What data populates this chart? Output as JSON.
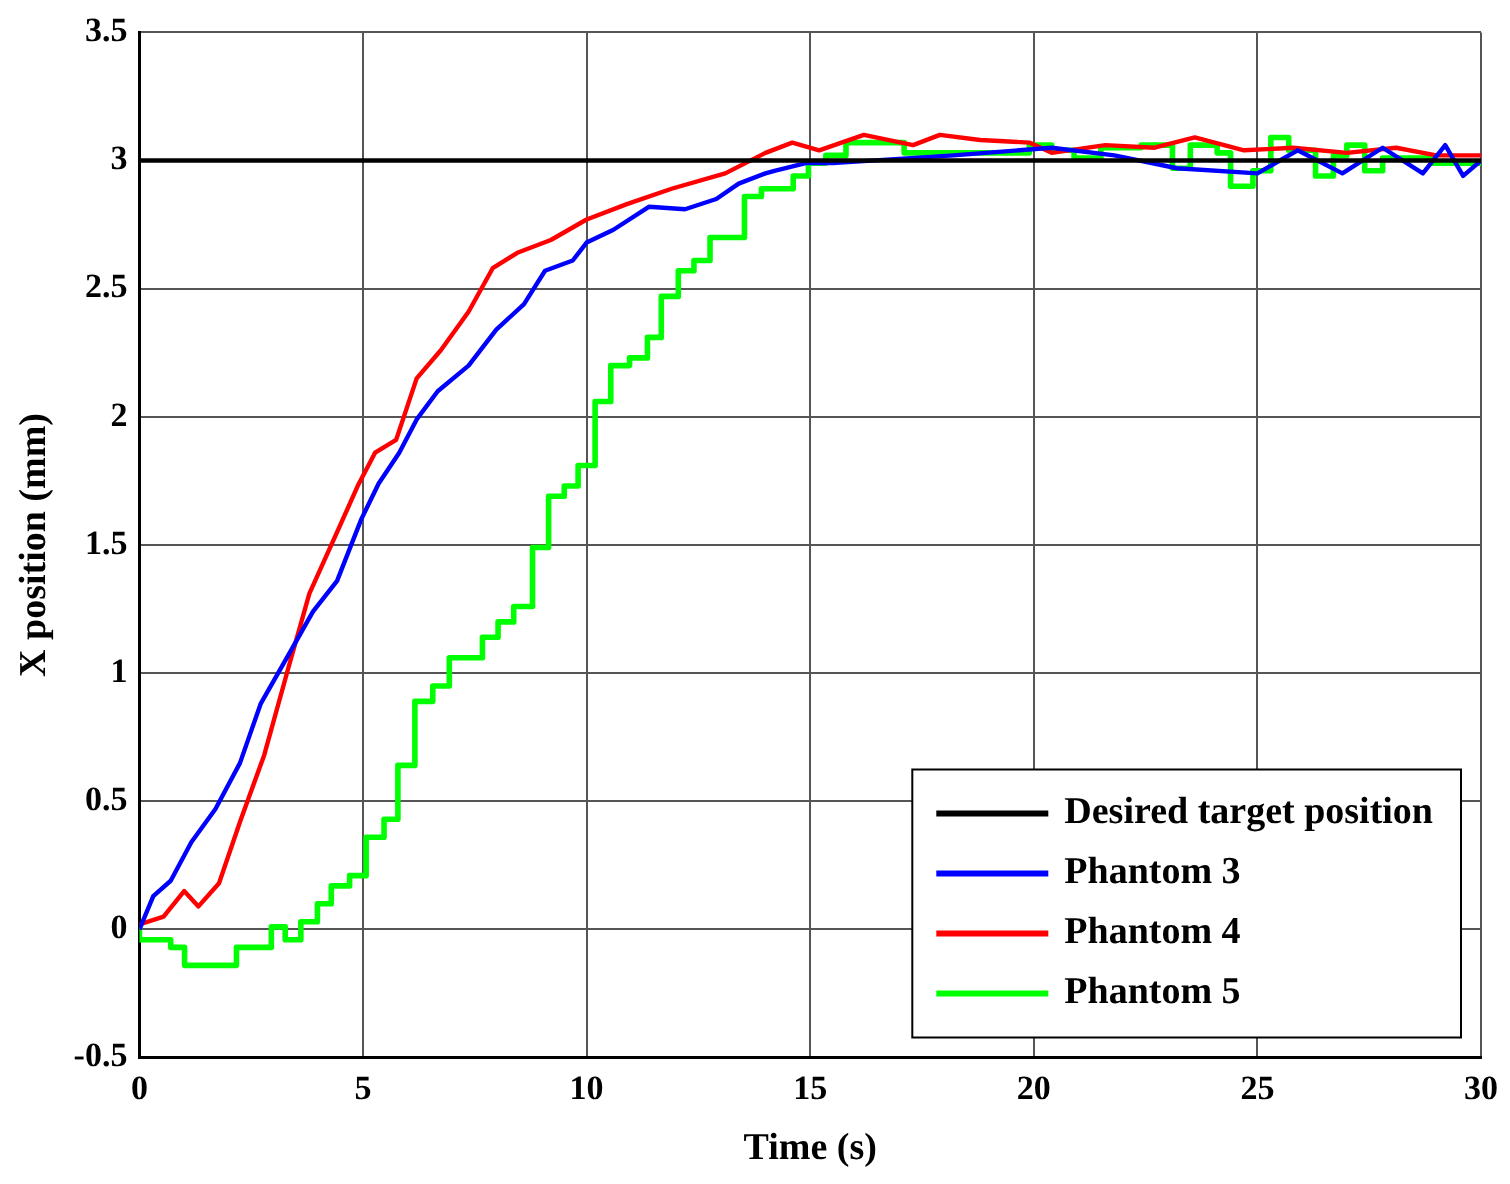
{
  "chart_data": {
    "type": "line",
    "xlabel": "Time (s)",
    "ylabel": "X position (mm)",
    "xlim": [
      0,
      30
    ],
    "xticks": [
      0,
      5,
      10,
      15,
      20,
      25,
      30
    ],
    "ylim": [
      -0.5,
      3.5
    ],
    "yticks": [
      -0.5,
      0,
      0.5,
      1,
      1.5,
      2,
      2.5,
      3,
      3.5
    ],
    "grid": true,
    "legend": "bottom right",
    "line_style": "solid",
    "marker": "none",
    "series": [
      {
        "name": "Desired target position",
        "color": "#000000",
        "x": [
          0,
          30
        ],
        "values": [
          3,
          3
        ]
      },
      {
        "name": "Phantom 3",
        "color": "#0000ff",
        "x": [
          0,
          0.31,
          0.7,
          1.16,
          1.7,
          2.25,
          2.71,
          3.33,
          3.88,
          4.42,
          4.96,
          5.35,
          5.81,
          6.2,
          6.67,
          7.36,
          7.98,
          8.6,
          9.07,
          9.69,
          10,
          10.6,
          11.4,
          12.2,
          12.9,
          13.4,
          14,
          14.2,
          14.9,
          15.5,
          18.2,
          20.4,
          21.8,
          23.2,
          25,
          25.9,
          26.9,
          27.8,
          28.7,
          29.2,
          29.6,
          30
        ],
        "values": [
          0,
          0.13,
          0.19,
          0.34,
          0.47,
          0.65,
          0.88,
          1.07,
          1.24,
          1.36,
          1.6,
          1.74,
          1.86,
          1.99,
          2.1,
          2.2,
          2.34,
          2.44,
          2.57,
          2.61,
          2.68,
          2.73,
          2.82,
          2.81,
          2.85,
          2.91,
          2.95,
          2.96,
          2.99,
          2.99,
          3.02,
          3.05,
          3.02,
          2.97,
          2.95,
          3.04,
          2.95,
          3.05,
          2.95,
          3.06,
          2.94,
          3
        ]
      },
      {
        "name": "Phantom 4",
        "color": "#ff0000",
        "x": [
          0,
          0.54,
          1,
          1.32,
          1.78,
          2.25,
          2.79,
          3.33,
          3.8,
          4.42,
          4.88,
          5.27,
          5.74,
          6.2,
          6.74,
          7.36,
          7.9,
          8.45,
          9.2,
          10,
          10.9,
          11.9,
          13.1,
          14,
          14.6,
          15.2,
          16.2,
          17.3,
          17.9,
          18.8,
          19.9,
          20.4,
          21.6,
          22.7,
          23.6,
          24.7,
          25.8,
          27,
          28.1,
          29,
          30
        ],
        "values": [
          0.02,
          0.05,
          0.15,
          0.09,
          0.18,
          0.42,
          0.68,
          1.02,
          1.31,
          1.55,
          1.73,
          1.86,
          1.91,
          2.15,
          2.26,
          2.41,
          2.58,
          2.64,
          2.69,
          2.77,
          2.83,
          2.89,
          2.95,
          3.03,
          3.07,
          3.04,
          3.1,
          3.06,
          3.1,
          3.08,
          3.07,
          3.03,
          3.06,
          3.05,
          3.09,
          3.04,
          3.05,
          3.03,
          3.05,
          3.02,
          3.02
        ]
      },
      {
        "name": "Phantom 5",
        "color": "#00ff00",
        "type": "step",
        "x": [
          0,
          0.7,
          1.01,
          2.17,
          2.95,
          3.26,
          3.61,
          3.98,
          4.29,
          4.7,
          5.07,
          5.47,
          5.78,
          6.16,
          6.56,
          6.93,
          7.67,
          8.02,
          8.37,
          8.79,
          9.15,
          9.5,
          9.81,
          10.19,
          10.54,
          10.96,
          11.36,
          11.67,
          12.05,
          12.4,
          12.76,
          13.53,
          13.91,
          14.62,
          14.96,
          15.35,
          15.8,
          17.1,
          17.5,
          19.9,
          20.4,
          20.9,
          21.5,
          22.4,
          23.1,
          23.5,
          24.1,
          24.4,
          24.9,
          25.3,
          25.7,
          26.3,
          26.7,
          27,
          27.4,
          27.8,
          28.9,
          30
        ],
        "values": [
          0.01,
          -0.04,
          -0.07,
          -0.14,
          -0.07,
          0.01,
          -0.04,
          0.03,
          0.1,
          0.17,
          0.21,
          0.36,
          0.43,
          0.64,
          0.89,
          0.95,
          1.06,
          1.14,
          1.2,
          1.26,
          1.49,
          1.69,
          1.73,
          1.81,
          2.06,
          2.2,
          2.23,
          2.31,
          2.47,
          2.57,
          2.61,
          2.7,
          2.86,
          2.89,
          2.94,
          2.99,
          3.02,
          3.07,
          3.03,
          3.03,
          3.06,
          3.04,
          3.01,
          3.05,
          3.06,
          2.97,
          3.06,
          3.03,
          2.9,
          2.96,
          3.09,
          3.04,
          2.94,
          3.02,
          3.06,
          2.96,
          3.01,
          2.99
        ]
      }
    ]
  }
}
